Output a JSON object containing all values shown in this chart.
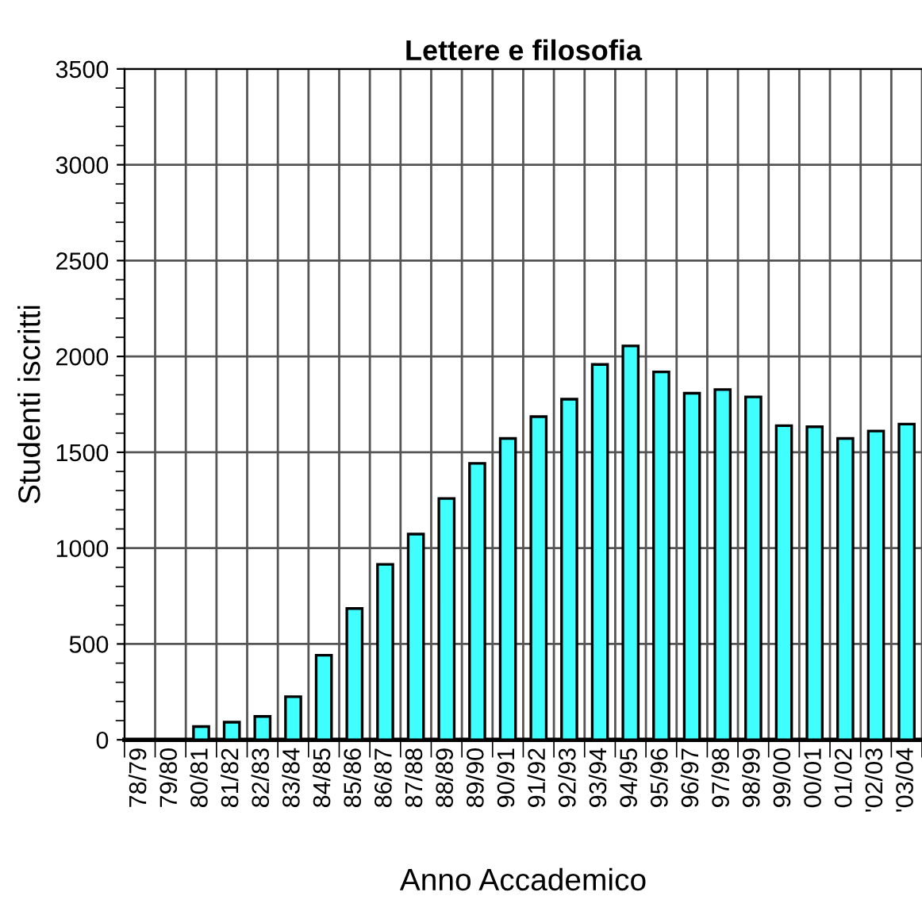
{
  "chart_data": {
    "type": "bar",
    "title": "Lettere e filosofia",
    "xlabel": "Anno Accademico",
    "ylabel": "Studenti iscritti",
    "categories": [
      "78/79",
      "79/80",
      "80/81",
      "81/82",
      "82/83",
      "83/84",
      "84/85",
      "85/86",
      "86/87",
      "87/88",
      "88/89",
      "89/90",
      "90/91",
      "91/92",
      "92/93",
      "93/94",
      "94/95",
      "95/96",
      "96/97",
      "97/98",
      "98/99",
      "99/00",
      "00/01",
      "01/02",
      "'02/03",
      "'03/04"
    ],
    "values": [
      null,
      null,
      69,
      92,
      122,
      225,
      441,
      685,
      915,
      1073,
      1259,
      1442,
      1572,
      1686,
      1777,
      1958,
      2055,
      1919,
      1808,
      1827,
      1789,
      1639,
      1633,
      1572,
      1611,
      1647
    ],
    "color": "#40ffff",
    "ylim": [
      0,
      3500
    ],
    "yticks": [
      0,
      500,
      1000,
      1500,
      2000,
      2500,
      3000,
      3500
    ],
    "grid": true
  }
}
